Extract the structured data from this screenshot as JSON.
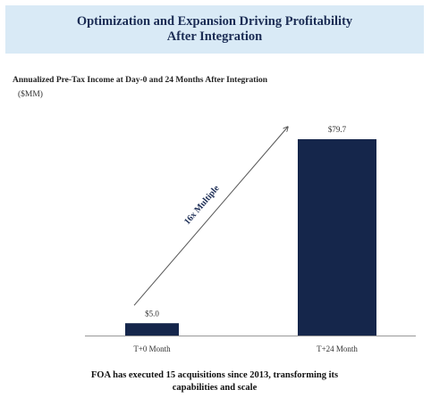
{
  "chart_data": {
    "type": "bar",
    "title": "Optimization and Expansion Driving Profitability After Integration",
    "subtitle": "Annualized Pre-Tax Income at Day-0 and 24 Months After Integration",
    "y_label": "($MM)",
    "categories": [
      "T+0 Month",
      "T+24 Month"
    ],
    "values": [
      5.0,
      79.7
    ],
    "value_labels": [
      "$5.0",
      "$79.7"
    ],
    "color": "#15264b",
    "annotation": "16x Multiple",
    "footnote": "FOA has executed 15 acquisitions since 2013, transforming its capabilities and scale"
  }
}
